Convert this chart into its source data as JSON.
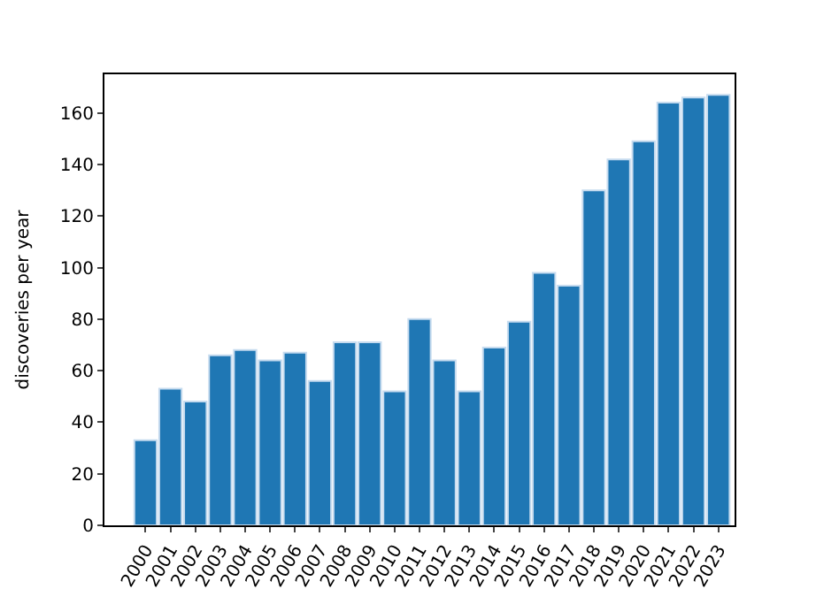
{
  "chart_data": {
    "type": "bar",
    "ylabel": "discoveries per year",
    "categories": [
      "2000",
      "2001",
      "2002",
      "2003",
      "2004",
      "2005",
      "2006",
      "2007",
      "2008",
      "2009",
      "2010",
      "2011",
      "2012",
      "2013",
      "2014",
      "2015",
      "2016",
      "2017",
      "2018",
      "2019",
      "2020",
      "2021",
      "2022",
      "2023"
    ],
    "values": [
      33,
      53,
      48,
      66,
      68,
      64,
      67,
      56,
      71,
      71,
      52,
      80,
      64,
      52,
      69,
      79,
      98,
      93,
      130,
      142,
      149,
      164,
      166,
      167
    ],
    "color": "#1f77b4",
    "ylim": [
      0,
      175
    ],
    "yticks": [
      0,
      20,
      40,
      60,
      80,
      100,
      120,
      140,
      160
    ]
  }
}
